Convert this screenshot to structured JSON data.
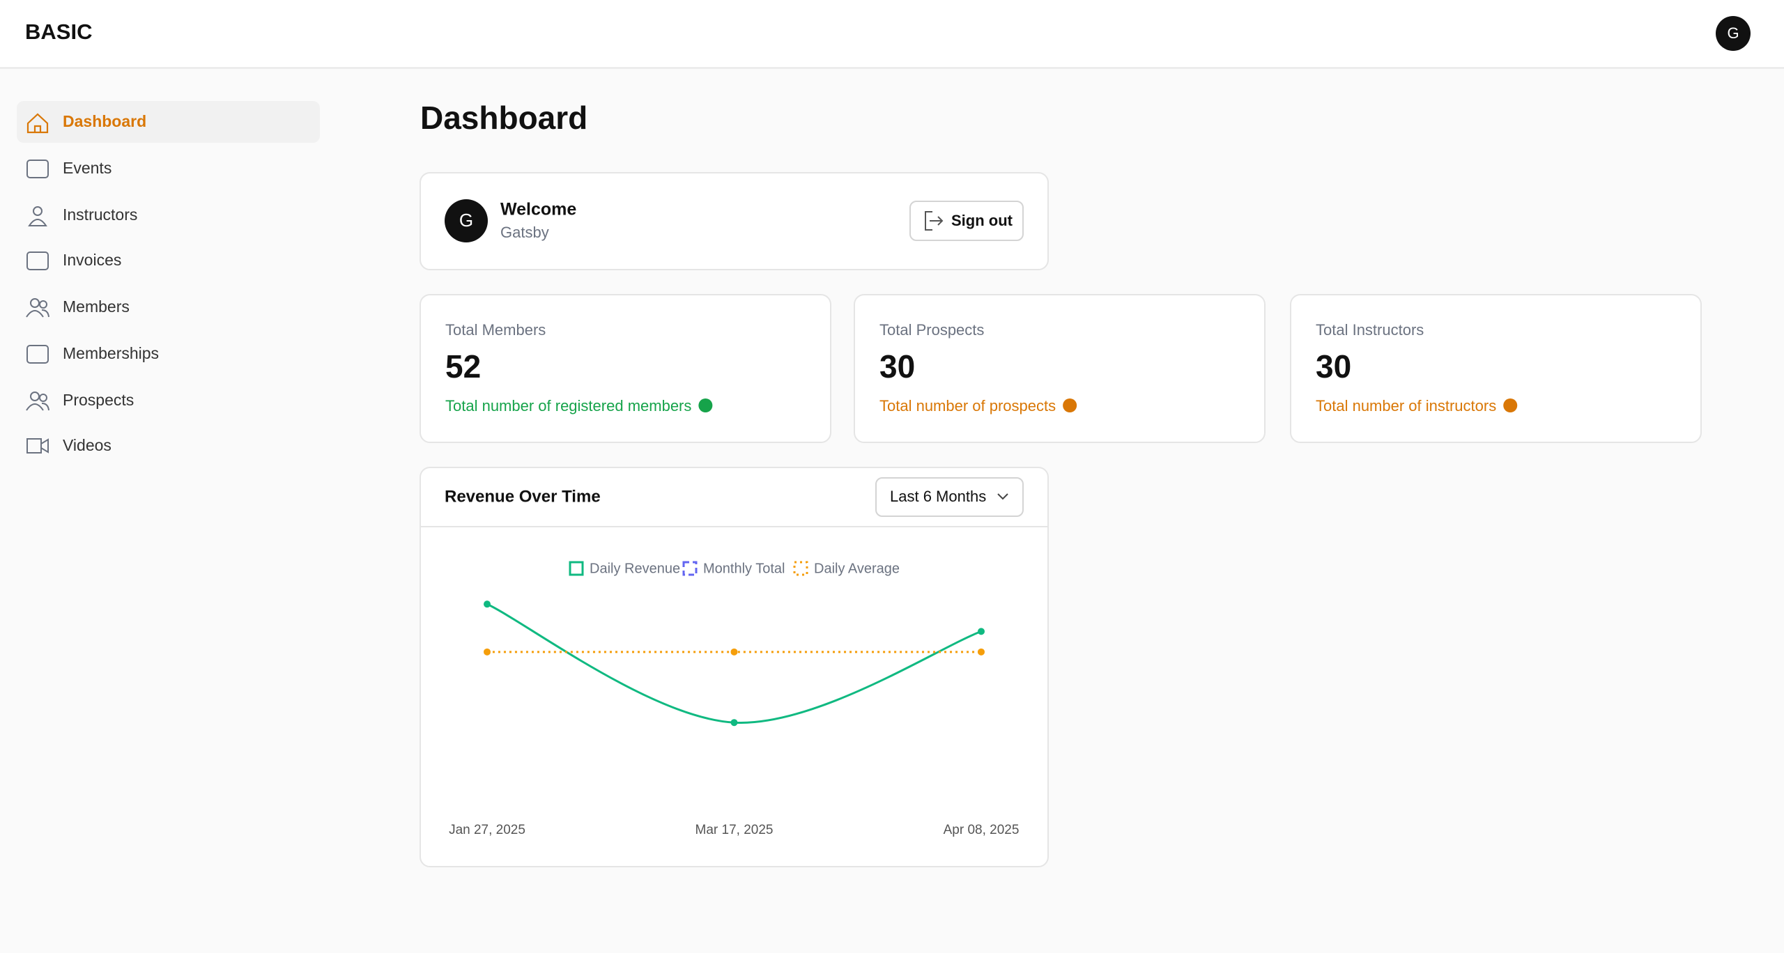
{
  "header": {
    "brand": "BASIC",
    "avatar": "G"
  },
  "sidebar": {
    "items": [
      "Dashboard",
      "Events",
      "Instructors",
      "Invoices",
      "Members",
      "Memberships",
      "Prospects",
      "Videos"
    ],
    "active": 0
  },
  "page_title": "Dashboard",
  "welcome": {
    "avatar": "G",
    "title": "Welcome",
    "name": "Gatsby",
    "button": "Sign out"
  },
  "stats": [
    {
      "label": "Total Members",
      "value": 52,
      "description": "Total number of registered members",
      "color": "#16a34a"
    },
    {
      "label": "Total Prospects",
      "value": 30,
      "description": "Total number of prospects",
      "color": "#d97706"
    },
    {
      "label": "Total Instructors",
      "value": 30,
      "description": "Total number of instructors",
      "color": "#d97706"
    }
  ],
  "chart_data": {
    "type": "line",
    "title": "Revenue Over Time",
    "range_select": "Last 6 Months",
    "categories": [
      "Jan 27, 2025",
      "Mar 17, 2025",
      "Apr 08, 2025"
    ],
    "series": [
      {
        "name": "Daily Revenue",
        "color": "#10b981",
        "values": [
          92,
          40,
          80
        ],
        "style": "solid"
      },
      {
        "name": "Monthly Total",
        "color": "#6366f1",
        "values": [
          null,
          null,
          null
        ],
        "style": "dashed"
      },
      {
        "name": "Daily Average",
        "color": "#f59e0b",
        "values": [
          71,
          71,
          71
        ],
        "style": "dotted"
      }
    ],
    "ylim": [
      0,
      100
    ]
  }
}
